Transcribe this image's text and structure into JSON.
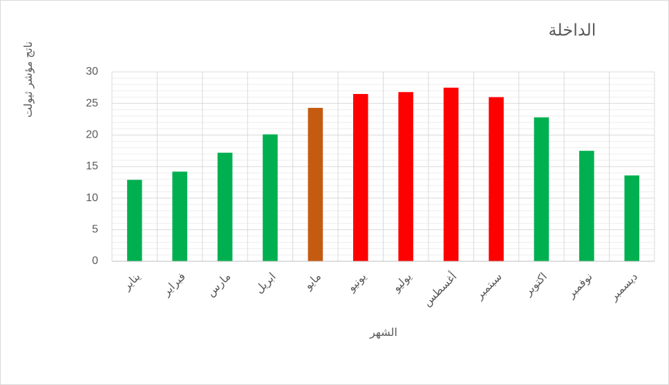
{
  "chart_data": {
    "type": "bar",
    "title": "الداخلة",
    "x_label": "الشهر",
    "y_label": "ناتج مؤشر ثيولت",
    "categories": [
      "يناير",
      "فبراير",
      "مارس",
      "ابريل",
      "مايو",
      "يونيو",
      "يوليو",
      "أغسطس",
      "سبتمبر",
      "اكتوبر",
      "نوفمبر",
      "ديسمبر"
    ],
    "values": [
      12.9,
      14.2,
      17.2,
      20.1,
      24.3,
      26.5,
      26.8,
      27.5,
      26.0,
      22.8,
      17.5,
      13.6
    ],
    "colors": [
      "#00b050",
      "#00b050",
      "#00b050",
      "#00b050",
      "#c55a11",
      "#ff0000",
      "#ff0000",
      "#ff0000",
      "#ff0000",
      "#00b050",
      "#00b050",
      "#00b050"
    ],
    "ylim": [
      0,
      30
    ],
    "yticks": [
      0,
      5,
      10,
      15,
      20,
      25,
      30
    ],
    "grid": true
  }
}
